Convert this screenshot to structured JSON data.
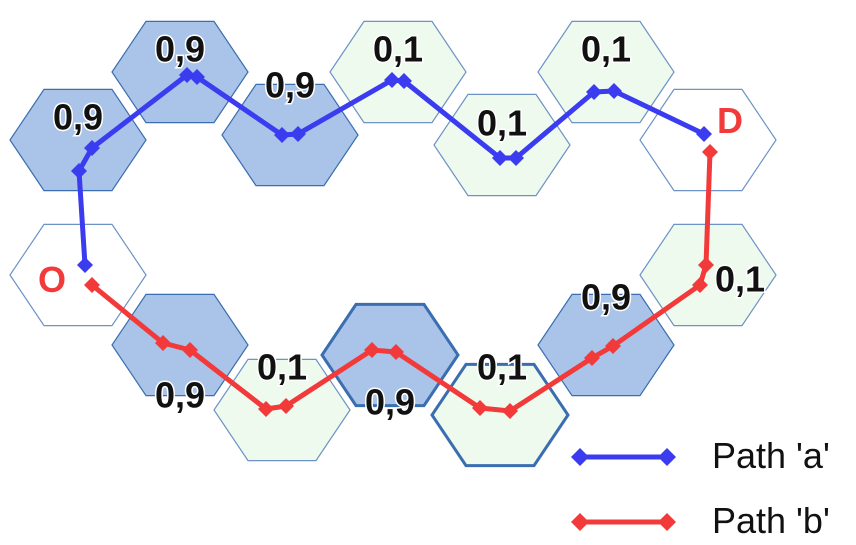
{
  "colors": {
    "high_cell_fill": "#a9c4e8",
    "high_cell_stroke": "#3a6eb0",
    "low_cell_fill": "#eefaee",
    "low_cell_stroke": "#6d93c4",
    "empty_cell_fill": "#ffffff",
    "path_a": "#3b3bf0",
    "path_b": "#f23a3a"
  },
  "cells": [
    {
      "label": "0,9",
      "type": "high"
    },
    {
      "label": "0,9",
      "type": "high"
    },
    {
      "label": "0,9",
      "type": "high"
    },
    {
      "label": "0,1",
      "type": "low"
    },
    {
      "label": "0,1",
      "type": "low"
    },
    {
      "label": "0,1",
      "type": "low"
    },
    {
      "label": "",
      "type": "empty"
    },
    {
      "label": "",
      "type": "empty"
    },
    {
      "label": "0,9",
      "type": "high"
    },
    {
      "label": "0,1",
      "type": "low"
    },
    {
      "label": "0,9",
      "type": "high"
    },
    {
      "label": "0,1",
      "type": "low"
    },
    {
      "label": "0,9",
      "type": "high"
    },
    {
      "label": "0,1",
      "type": "low"
    }
  ],
  "origin": {
    "label": "O",
    "color": "#f23a3a"
  },
  "destination": {
    "label": "D",
    "color": "#f23a3a"
  },
  "paths": [
    {
      "id": "a",
      "legend": "Path 'a'",
      "color": "#3b3bf0"
    },
    {
      "id": "b",
      "legend": "Path 'b'",
      "color": "#f23a3a"
    }
  ]
}
